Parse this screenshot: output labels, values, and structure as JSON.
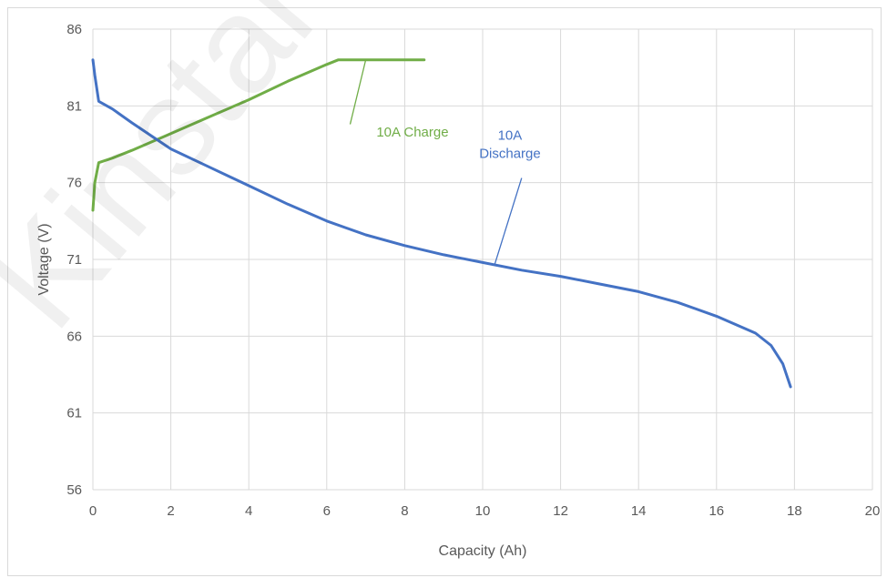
{
  "chart_data": {
    "type": "line",
    "title": "",
    "xlabel": "Capacity (Ah)",
    "ylabel": "Voltage (V)",
    "xlim": [
      0,
      20
    ],
    "ylim": [
      56,
      86
    ],
    "x_ticks": [
      "0",
      "2",
      "4",
      "6",
      "8",
      "10",
      "12",
      "14",
      "16",
      "18",
      "20"
    ],
    "y_ticks": [
      "86",
      "81",
      "76",
      "71",
      "66",
      "61",
      "56"
    ],
    "grid": true,
    "series": [
      {
        "name": "10A Charge",
        "color": "#70ad47",
        "points": [
          [
            0.0,
            74.2
          ],
          [
            0.05,
            76.0
          ],
          [
            0.15,
            77.3
          ],
          [
            0.5,
            77.6
          ],
          [
            1.0,
            78.1
          ],
          [
            2.0,
            79.2
          ],
          [
            3.0,
            80.3
          ],
          [
            4.0,
            81.4
          ],
          [
            5.0,
            82.6
          ],
          [
            6.0,
            83.7
          ],
          [
            6.3,
            84.0
          ],
          [
            7.0,
            84.0
          ],
          [
            8.0,
            84.0
          ],
          [
            8.5,
            84.0
          ]
        ]
      },
      {
        "name": "10A Discharge",
        "color": "#4472c4",
        "points": [
          [
            0.0,
            84.0
          ],
          [
            0.05,
            83.0
          ],
          [
            0.15,
            81.3
          ],
          [
            0.5,
            80.8
          ],
          [
            1.0,
            79.9
          ],
          [
            2.0,
            78.2
          ],
          [
            3.0,
            77.0
          ],
          [
            4.0,
            75.8
          ],
          [
            5.0,
            74.6
          ],
          [
            6.0,
            73.5
          ],
          [
            7.0,
            72.6
          ],
          [
            8.0,
            71.9
          ],
          [
            9.0,
            71.3
          ],
          [
            10.0,
            70.8
          ],
          [
            11.0,
            70.3
          ],
          [
            12.0,
            69.9
          ],
          [
            13.0,
            69.4
          ],
          [
            14.0,
            68.9
          ],
          [
            15.0,
            68.2
          ],
          [
            16.0,
            67.3
          ],
          [
            17.0,
            66.2
          ],
          [
            17.4,
            65.4
          ],
          [
            17.7,
            64.2
          ],
          [
            17.9,
            62.7
          ]
        ]
      }
    ],
    "annotations": [
      {
        "lines": [
          "10A Charge"
        ],
        "color": "#70ad47",
        "text_x": 8.2,
        "text_y": 79.0,
        "leader_from": [
          6.6,
          79.8
        ],
        "leader_to": [
          7.0,
          84.0
        ]
      },
      {
        "lines": [
          "10A",
          "Discharge"
        ],
        "color": "#4472c4",
        "text_x": 10.7,
        "text_y": 78.8,
        "leader_from": [
          11.0,
          76.3
        ],
        "leader_to": [
          10.3,
          70.6
        ]
      }
    ]
  }
}
